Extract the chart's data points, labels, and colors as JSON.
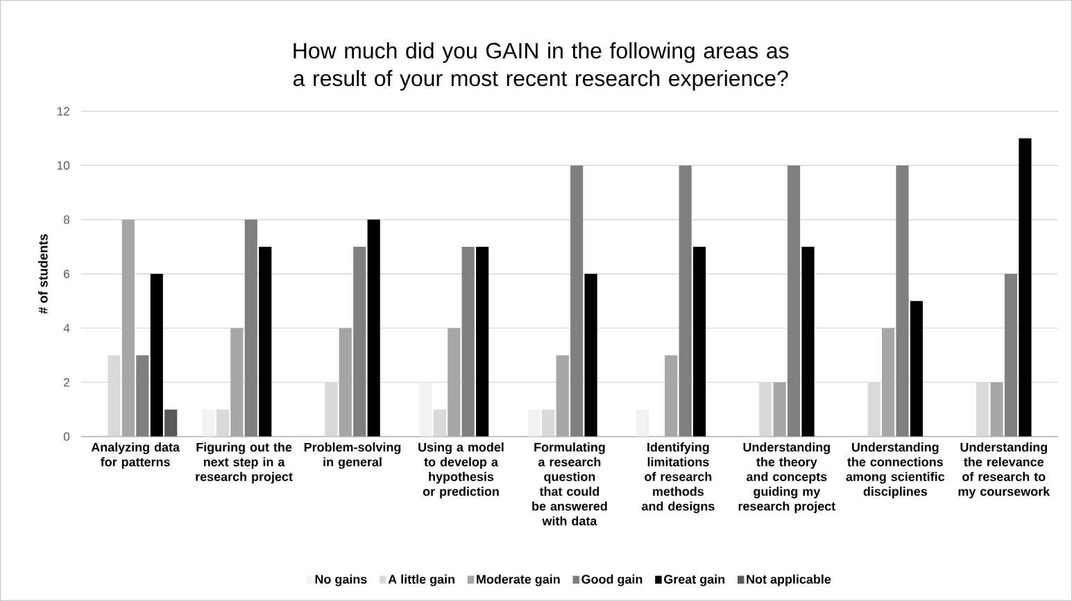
{
  "chart_data": {
    "type": "bar",
    "title": "How much did you GAIN in the following areas as a result of your most recent research experience?",
    "ylabel": "# of students",
    "categories": [
      "Analyzing data for patterns",
      "Figuring out the next step in a research project",
      "Problem-solving in general",
      "Using a model to develop a hypothesis or prediction",
      "Formulating a research question that could be answered with data",
      "Identifying limitations of research methods and designs",
      "Understanding the theory and concepts guiding my research project",
      "Understanding the connections among scientific disciplines",
      "Understanding the relevance of research to my coursework"
    ],
    "series": [
      {
        "name": "No gains",
        "color": "#f2f2f2",
        "values": [
          0,
          1,
          0,
          2,
          1,
          1,
          0,
          0,
          0
        ]
      },
      {
        "name": "A little gain",
        "color": "#d9d9d9",
        "values": [
          3,
          1,
          2,
          1,
          1,
          0,
          2,
          2,
          2
        ]
      },
      {
        "name": "Moderate gain",
        "color": "#a6a6a6",
        "values": [
          8,
          4,
          4,
          4,
          3,
          3,
          2,
          4,
          2
        ]
      },
      {
        "name": "Good gain",
        "color": "#7f7f7f",
        "values": [
          3,
          8,
          7,
          7,
          10,
          10,
          10,
          10,
          6
        ]
      },
      {
        "name": "Great gain",
        "color": "#000000",
        "values": [
          6,
          7,
          8,
          7,
          6,
          7,
          7,
          5,
          11
        ]
      },
      {
        "name": "Not applicable",
        "color": "#595959",
        "values": [
          1,
          0,
          0,
          0,
          0,
          0,
          0,
          0,
          0
        ]
      }
    ],
    "ylim": [
      0,
      12
    ],
    "yticks": [
      0,
      2,
      4,
      6,
      8,
      10,
      12
    ],
    "grid": "y",
    "legend": "bottom"
  }
}
